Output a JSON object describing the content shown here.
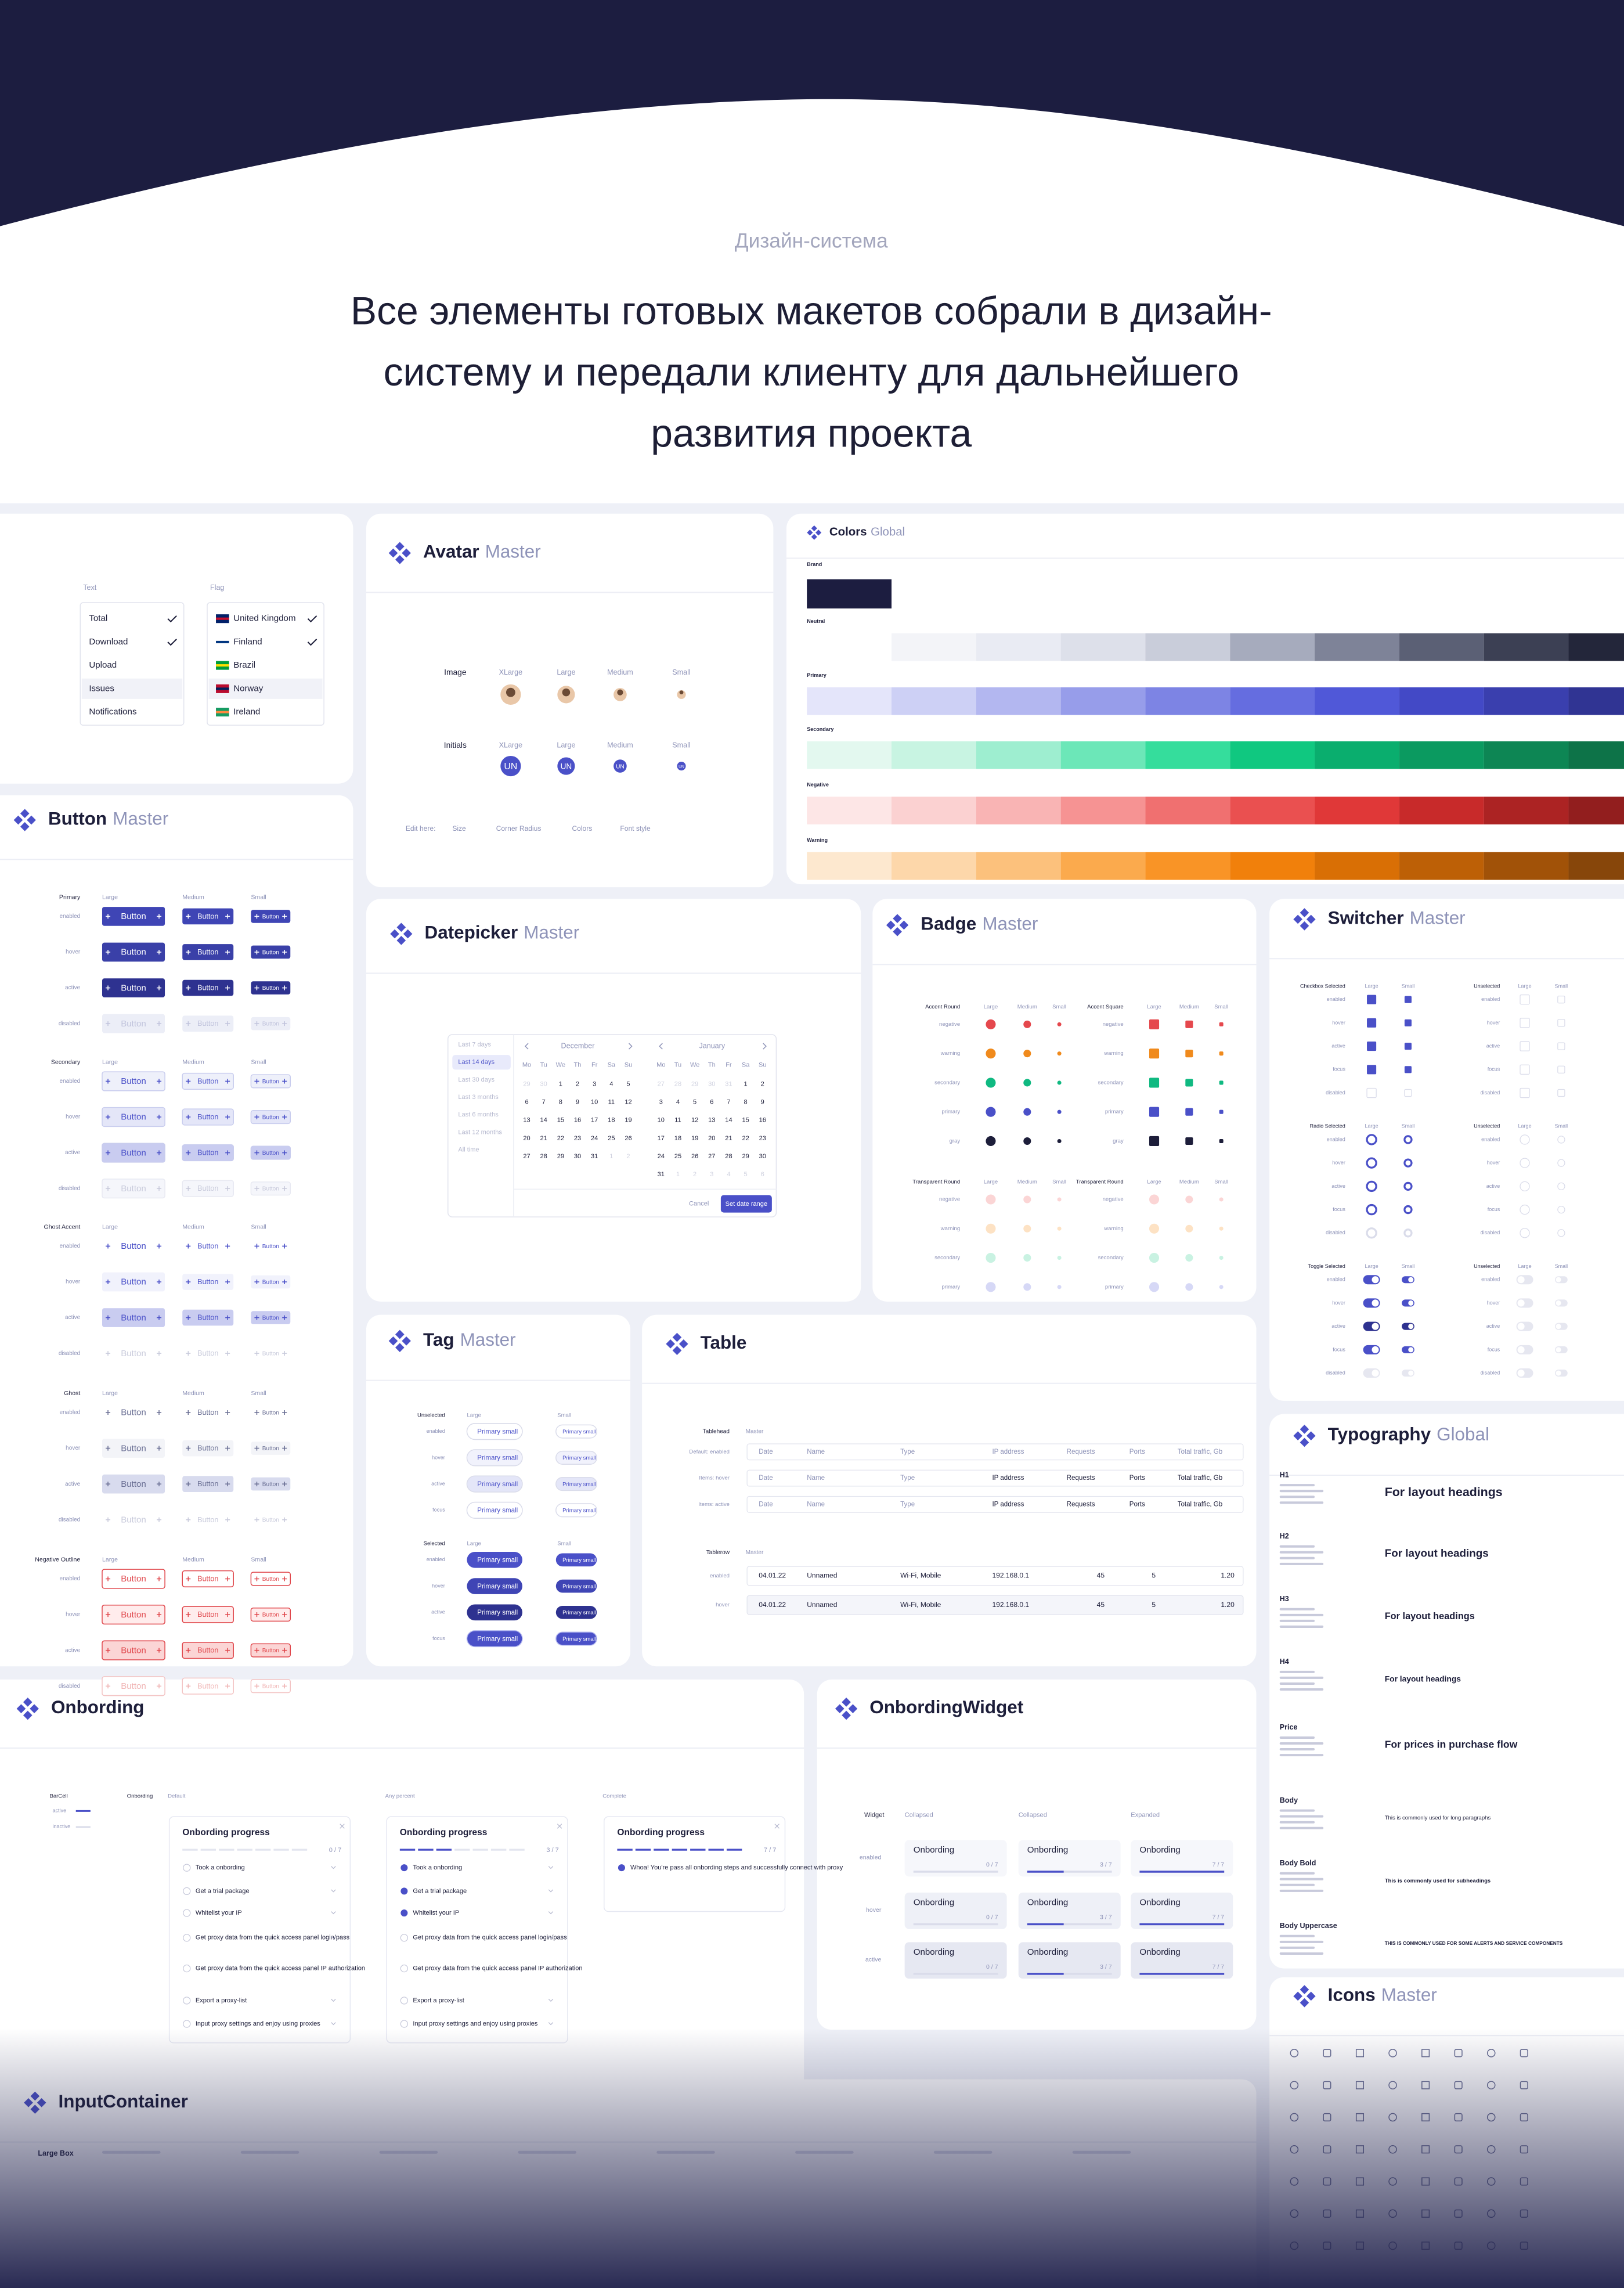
{
  "header": {
    "kicker": "Дизайн-система",
    "title_lines": [
      "Все элементы готовых макетов собрали в дизайн-",
      "систему и передали клиенту для дальнейшего",
      "развития проекта"
    ]
  },
  "cards": [
    {
      "title": "Avatar",
      "tag": "Master"
    },
    {
      "title": "Colors",
      "tag": "Global"
    },
    {
      "title": "Button",
      "tag": "Master"
    },
    {
      "title": "Datepicker",
      "tag": "Master"
    },
    {
      "title": "Badge",
      "tag": "Master"
    },
    {
      "title": "Switcher",
      "tag": "Master"
    },
    {
      "title": "Tag",
      "tag": "Master"
    },
    {
      "title": "Table"
    },
    {
      "title": "Typography",
      "tag": "Global"
    },
    {
      "title": "Onbording"
    },
    {
      "title": "OnbordingWidget"
    },
    {
      "title": "Icons",
      "tag": "Master"
    },
    {
      "title": "InputContainer"
    }
  ],
  "flags": {
    "text_label": "Text",
    "flag_label": "Flag",
    "text_items": [
      "Total",
      "Download",
      "Upload",
      "Issues",
      "Notifications"
    ],
    "flag_items": [
      "United Kingdom",
      "Finland",
      "Brazil",
      "Norway",
      "Ireland"
    ]
  },
  "avatar": {
    "sizes": [
      "XLarge",
      "Large",
      "Medium",
      "Small"
    ],
    "rows": [
      "Image",
      "Initials"
    ],
    "initials": "UN",
    "footer": [
      "Edit here:",
      "Size",
      "Corner Radius",
      "Colors",
      "Font style"
    ]
  },
  "colors": {
    "groups": [
      "Brand",
      "Neutral",
      "Primary",
      "Secondary",
      "Negative",
      "Warning"
    ]
  },
  "button": {
    "variants": [
      "Primary",
      "Secondary",
      "Ghost Accent",
      "Ghost",
      "Negative Outline"
    ],
    "sizes": [
      "Large",
      "Medium",
      "Small"
    ],
    "states": [
      "enabled",
      "hover",
      "active",
      "disabled"
    ],
    "label": "Button"
  },
  "datepicker": {
    "presets": [
      "Last 7 days",
      "Last 14 days",
      "Last 30 days",
      "Last 3 months",
      "Last 6 months",
      "Last 12 months",
      "All time"
    ],
    "months": [
      "December",
      "January"
    ],
    "weekdays": [
      "Mo",
      "Tu",
      "We",
      "Th",
      "Fr",
      "Sa",
      "Su"
    ],
    "december": [
      29,
      30,
      1,
      2,
      3,
      4,
      5,
      6,
      7,
      8,
      9,
      10,
      11,
      12,
      13,
      14,
      15,
      16,
      17,
      18,
      19,
      20,
      21,
      22,
      23,
      24,
      25,
      26,
      27,
      28,
      29,
      30,
      31,
      1,
      2
    ],
    "january": [
      27,
      28,
      29,
      30,
      31,
      1,
      2,
      3,
      4,
      5,
      6,
      7,
      8,
      9,
      10,
      11,
      12,
      13,
      14,
      15,
      16,
      17,
      18,
      19,
      20,
      21,
      22,
      23,
      24,
      25,
      26,
      27,
      28,
      29,
      30,
      31,
      1,
      2,
      3,
      4,
      5,
      6
    ],
    "cancel": "Cancel",
    "apply": "Set date range"
  },
  "badge": {
    "groups": [
      "Accent Round",
      "Accent Square",
      "Transparent Round",
      "Transparent Round"
    ],
    "sizes": [
      "Large",
      "Medium",
      "Small"
    ],
    "rows": [
      "negative",
      "warning",
      "secondary",
      "primary",
      "gray"
    ]
  },
  "switcher": {
    "groups": [
      "Checkbox Selected",
      "Unselected",
      "Radio Selected",
      "Unselected",
      "Toggle Selected",
      "Unselected"
    ],
    "sizes": [
      "Large",
      "Small"
    ],
    "states": [
      "enabled",
      "hover",
      "active",
      "focus",
      "disabled"
    ]
  },
  "tag": {
    "groups": [
      "Unselected",
      "Selected"
    ],
    "sizes": [
      "Large",
      "Small"
    ],
    "states": [
      "enabled",
      "hover",
      "active",
      "focus"
    ],
    "label": "Primary small"
  },
  "table": {
    "head_label": "Tablehead",
    "row_label": "Tablerow",
    "master": "Master",
    "head_states": [
      "Default: enabled",
      "Items: hover",
      "Items: active"
    ],
    "columns": [
      "Date",
      "Name",
      "Type",
      "IP address",
      "Requests",
      "Ports",
      "Total traffic, Gb"
    ],
    "row_states": [
      "enabled",
      "hover"
    ],
    "row": [
      "04.01.22",
      "Unnamed",
      "Wi-Fi, Mobile",
      "192.168.0.1",
      "45",
      "5",
      "1.20"
    ]
  },
  "typography": {
    "styles": [
      {
        "name": "H1",
        "sample": "For layout headings"
      },
      {
        "name": "H2",
        "sample": "For layout headings"
      },
      {
        "name": "H3",
        "sample": "For layout headings"
      },
      {
        "name": "H4",
        "sample": "For layout headings"
      },
      {
        "name": "Price",
        "sample": "For prices in purchase flow"
      },
      {
        "name": "Body",
        "sample": "This is commonly used for long paragraphs"
      },
      {
        "name": "Body Bold",
        "sample": "This is commonly used for subheadings"
      },
      {
        "name": "Body Uppercase",
        "sample": "THIS IS COMMONLY USED FOR SOME ALERTS AND SERVICE COMPONENTS"
      }
    ]
  },
  "onboarding": {
    "barcell": "BarCell",
    "bar_states": [
      "active",
      "inactive"
    ],
    "label": "Onbording",
    "columns": [
      "Default",
      "Any percent",
      "Complete"
    ],
    "title": "Onbording progress",
    "progress": [
      "0 / 7",
      "3 / 7",
      "7 / 7"
    ],
    "steps": [
      "Took a onbording",
      "Get a trial package",
      "Whitelist your IP",
      "Get proxy data from the quick access panel login/pass",
      "Get proxy data from the quick access panel IP authorization",
      "Export a proxy-list",
      "Input proxy settings and enjoy using proxies"
    ],
    "complete_text": "Whoa! You're pass all onbording steps and successfully connect with proxy"
  },
  "widget": {
    "label": "Widget",
    "columns": [
      "Collapsed",
      "Collapsed",
      "Expanded"
    ],
    "states": [
      "enabled",
      "hover",
      "active"
    ],
    "title": "Onbording",
    "progress": [
      "0 / 7",
      "3 / 7",
      "7 / 7"
    ]
  },
  "inputcontainer": {
    "label": "Large Box"
  }
}
